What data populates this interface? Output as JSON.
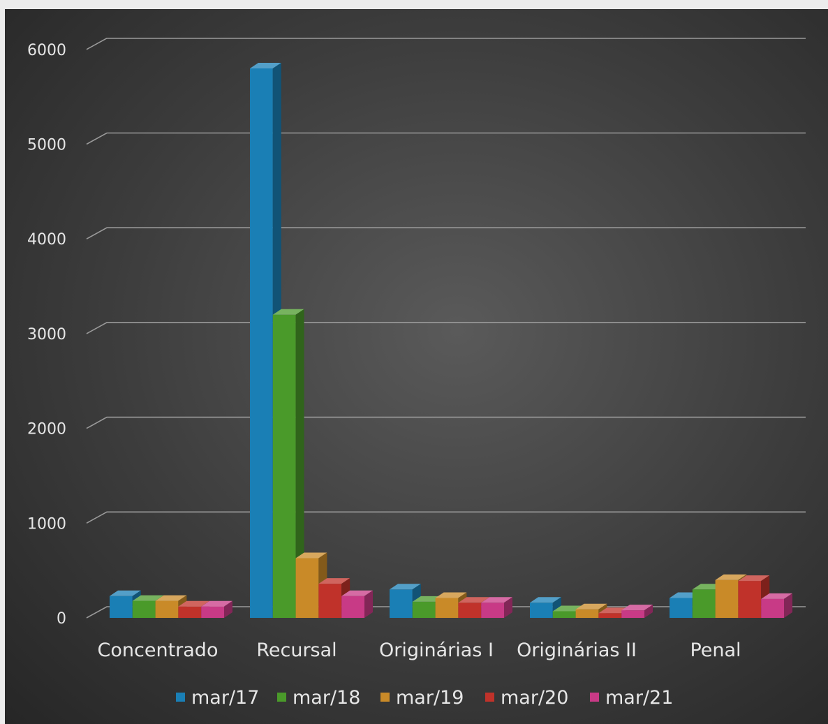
{
  "chart_data": {
    "type": "bar",
    "title": "",
    "xlabel": "",
    "ylabel": "",
    "ylim": [
      0,
      6000
    ],
    "yticks": [
      "0",
      "1000",
      "2000",
      "3000",
      "4000",
      "5000",
      "6000"
    ],
    "grid": true,
    "legend_position": "bottom",
    "categories": [
      "Concentrado",
      "Recursal",
      "Originárias I",
      "Originárias II",
      "Penal"
    ],
    "series": [
      {
        "name": "mar/17",
        "color": "#1a7fb5",
        "values": [
          230,
          5800,
          300,
          160,
          210
        ]
      },
      {
        "name": "mar/18",
        "color": "#4a9a2a",
        "values": [
          180,
          3200,
          170,
          70,
          300
        ]
      },
      {
        "name": "mar/19",
        "color": "#c98a28",
        "values": [
          180,
          630,
          210,
          90,
          400
        ]
      },
      {
        "name": "mar/20",
        "color": "#c0322a",
        "values": [
          120,
          360,
          160,
          50,
          390
        ]
      },
      {
        "name": "mar/21",
        "color": "#c83a86",
        "values": [
          120,
          230,
          160,
          80,
          200
        ]
      }
    ]
  }
}
